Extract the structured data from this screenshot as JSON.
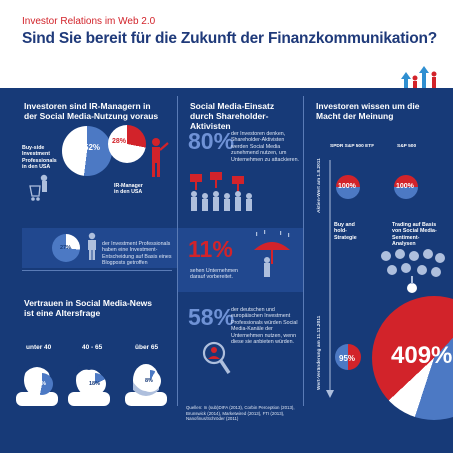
{
  "header": {
    "kicker": "Investor Relations im Web 2.0",
    "title": "Sind Sie bereit für die Zukunft der Finanzkommunikation?"
  },
  "colors": {
    "navy": "#173a78",
    "band": "#21488f",
    "red": "#d2232a",
    "light": "#6f92d6",
    "white": "#ffffff"
  },
  "left": {
    "section1_title": "Investoren sind IR-Managern in der Social Media-Nutzung voraus",
    "buyside_label": "Buy-side Investment Professionals in den USA",
    "buyside_pct": "52%",
    "buyside_value": 52,
    "irmanager_label": "IR-Manager in den USA",
    "irmanager_pct": "28%",
    "irmanager_value": 28,
    "blog_pct": "27%",
    "blog_value": 27,
    "blog_text": "der Investment Professionals haben eine Investment-Entscheidung auf Basis eines Blogposts getroffen",
    "section2_title": "Vertrauen in Social Media-News ist eine Altersfrage",
    "ages": [
      {
        "label": "unter 40",
        "pct": "53%",
        "value": 53
      },
      {
        "label": "40 - 65",
        "pct": "18%",
        "value": 18
      },
      {
        "label": "über 65",
        "pct": "8%",
        "value": 8
      }
    ]
  },
  "middle": {
    "title": "Social Media-Einsatz durch Shareholder-Aktivisten",
    "stat1_pct": "80%",
    "stat1_text": "der Investoren denken, Shareholder-Aktivisten werden Social Media zunehmend nutzen, um Unternehmen zu attackieren.",
    "stat2_pct": "11%",
    "stat2_text": "sehen Unternehmen darauf vorbereitet.",
    "stat3_pct": "58%",
    "stat3_text": "der deutschen und europäischen Investment Professionals würden Social Media-Kanäle der Unternehmen nutzen, wenn diese sie anbieten würden."
  },
  "right": {
    "title": "Investoren wissen um die Macht der Meinung",
    "col1_label": "SPDR S&P 500 ETF",
    "col2_label": "S&P 500",
    "axis_top": "Aktien-Wert am 1.8.2011",
    "axis_bottom": "Wert-Veränderung am 11.11.2011",
    "top_left_pct": "100%",
    "top_right_pct": "100%",
    "strategy_left": "Buy and hold-Strategie",
    "strategy_right": "Trading auf Basis von Social Media-Sentiment-Analysen",
    "bottom_left_pct": "95%",
    "bottom_right_pct": "409%"
  },
  "sources": "Quellen: In (sub)DIFA (2013), Corbin Perception (2013), Brunswick (2014), Marketwired (2013), FTI (2013), Nanofinus/Schröder (2011)"
}
